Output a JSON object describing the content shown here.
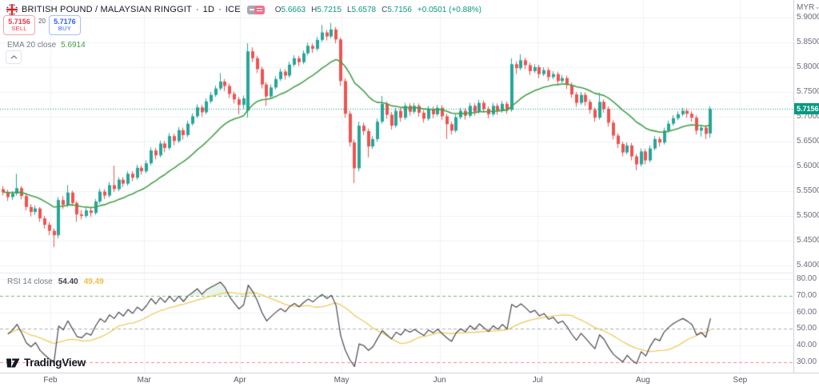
{
  "header": {
    "symbol": "BRITISH POUND / MALAYSIAN RINGGIT",
    "separator": "·",
    "interval": "1D",
    "exchange": "ICE",
    "ohlc": {
      "o_label": "O",
      "o": "5.6663",
      "h_label": "H",
      "h": "5.7215",
      "l_label": "L",
      "l": "5.6578",
      "c_label": "C",
      "c": "5.7156",
      "change": "+0.0501 (+0.88%)"
    }
  },
  "trade_buttons": {
    "sell_price": "5.7156",
    "sell_label": "SELL",
    "spread": "20",
    "buy_price": "5.7176",
    "buy_label": "BUY"
  },
  "indicators": {
    "ema": {
      "label": "EMA 20 close",
      "value": "5.6914"
    },
    "rsi": {
      "label": "RSI 14 close",
      "value": "54.40",
      "ma_value": "49.49"
    }
  },
  "price_axis": {
    "currency": "MYR",
    "ticks": [
      "5.9000",
      "5.8500",
      "5.8000",
      "5.7500",
      "5.7000",
      "5.6500",
      "5.6000",
      "5.5500",
      "5.5000",
      "5.4500",
      "5.4000"
    ],
    "current_price": "5.7156"
  },
  "rsi_axis": {
    "ticks": [
      "80.00",
      "70.00",
      "60.00",
      "50.00",
      "40.00",
      "30.00"
    ]
  },
  "time_axis": {
    "months": [
      {
        "label": "Feb",
        "anchor_index": 10.2
      },
      {
        "label": "Mar",
        "anchor_index": 30.5
      },
      {
        "label": "Apr",
        "anchor_index": 51.2
      },
      {
        "label": "May",
        "anchor_index": 73.2
      },
      {
        "label": "Jun",
        "anchor_index": 94.4
      },
      {
        "label": "Jul",
        "anchor_index": 115.6
      },
      {
        "label": "Aug",
        "anchor_index": 138.4
      },
      {
        "label": "Sep",
        "anchor_index": 159.4
      }
    ]
  },
  "logo": {
    "text": "TradingView"
  },
  "colors": {
    "up_candle": "#26a69a",
    "down_candle": "#ef5350",
    "ema_line": "#43a047",
    "rsi_line": "#4a4550",
    "rsi_ma_line": "#eec95c",
    "overbought_line": "#6dbd70",
    "midline_line": "#a9acb5",
    "oversold_line": "#f5898e",
    "current_price": "#089981",
    "grid": "#eef0f5",
    "separator": "#e4e7ed"
  },
  "chart_data": {
    "type": "candlestick",
    "title": "British Pound / Malaysian Ringgit, 1D, ICE with EMA 20 and RSI 14",
    "price_range": [
      5.4,
      5.9
    ],
    "price_tick_step": 0.05,
    "ema_period": 20,
    "rsi_period": 14,
    "rsi_ma_period": 14,
    "rsi_levels": {
      "overbought": 70,
      "middle": 50,
      "oversold": 30
    },
    "current_price": 5.7156,
    "candles": [
      [
        5.554,
        5.56,
        5.541,
        5.548
      ],
      [
        5.548,
        5.553,
        5.53,
        5.538
      ],
      [
        5.538,
        5.55,
        5.532,
        5.545
      ],
      [
        5.545,
        5.585,
        5.541,
        5.556
      ],
      [
        5.556,
        5.56,
        5.533,
        5.54
      ],
      [
        5.54,
        5.545,
        5.511,
        5.518
      ],
      [
        5.518,
        5.524,
        5.499,
        5.508
      ],
      [
        5.508,
        5.521,
        5.502,
        5.515
      ],
      [
        5.515,
        5.518,
        5.488,
        5.495
      ],
      [
        5.495,
        5.5,
        5.474,
        5.482
      ],
      [
        5.482,
        5.488,
        5.461,
        5.47
      ],
      [
        5.47,
        5.475,
        5.437,
        5.461
      ],
      [
        5.461,
        5.538,
        5.455,
        5.532
      ],
      [
        5.532,
        5.54,
        5.514,
        5.522
      ],
      [
        5.522,
        5.562,
        5.518,
        5.547
      ],
      [
        5.547,
        5.551,
        5.52,
        5.526
      ],
      [
        5.526,
        5.53,
        5.488,
        5.503
      ],
      [
        5.503,
        5.512,
        5.493,
        5.5
      ],
      [
        5.5,
        5.517,
        5.496,
        5.511
      ],
      [
        5.511,
        5.516,
        5.498,
        5.506
      ],
      [
        5.506,
        5.534,
        5.502,
        5.529
      ],
      [
        5.529,
        5.555,
        5.525,
        5.549
      ],
      [
        5.549,
        5.554,
        5.534,
        5.541
      ],
      [
        5.541,
        5.568,
        5.537,
        5.562
      ],
      [
        5.562,
        5.601,
        5.548,
        5.554
      ],
      [
        5.554,
        5.578,
        5.55,
        5.573
      ],
      [
        5.573,
        5.578,
        5.558,
        5.565
      ],
      [
        5.565,
        5.59,
        5.561,
        5.585
      ],
      [
        5.585,
        5.59,
        5.57,
        5.577
      ],
      [
        5.577,
        5.603,
        5.573,
        5.597
      ],
      [
        5.597,
        5.602,
        5.583,
        5.59
      ],
      [
        5.59,
        5.612,
        5.586,
        5.606
      ],
      [
        5.606,
        5.638,
        5.602,
        5.632
      ],
      [
        5.632,
        5.637,
        5.614,
        5.622
      ],
      [
        5.622,
        5.652,
        5.618,
        5.646
      ],
      [
        5.646,
        5.651,
        5.628,
        5.637
      ],
      [
        5.637,
        5.667,
        5.633,
        5.661
      ],
      [
        5.661,
        5.666,
        5.642,
        5.651
      ],
      [
        5.651,
        5.679,
        5.647,
        5.673
      ],
      [
        5.673,
        5.678,
        5.654,
        5.663
      ],
      [
        5.663,
        5.692,
        5.659,
        5.686
      ],
      [
        5.686,
        5.707,
        5.682,
        5.701
      ],
      [
        5.701,
        5.725,
        5.697,
        5.719
      ],
      [
        5.719,
        5.724,
        5.7,
        5.709
      ],
      [
        5.709,
        5.737,
        5.705,
        5.731
      ],
      [
        5.731,
        5.75,
        5.727,
        5.744
      ],
      [
        5.744,
        5.763,
        5.74,
        5.757
      ],
      [
        5.757,
        5.788,
        5.753,
        5.771
      ],
      [
        5.771,
        5.776,
        5.752,
        5.762
      ],
      [
        5.762,
        5.767,
        5.738,
        5.746
      ],
      [
        5.746,
        5.751,
        5.727,
        5.735
      ],
      [
        5.735,
        5.74,
        5.705,
        5.724
      ],
      [
        5.724,
        5.743,
        5.716,
        5.737
      ],
      [
        5.712,
        5.848,
        5.698,
        5.832
      ],
      [
        5.832,
        5.84,
        5.81,
        5.818
      ],
      [
        5.818,
        5.823,
        5.788,
        5.796
      ],
      [
        5.796,
        5.801,
        5.757,
        5.765
      ],
      [
        5.765,
        5.77,
        5.722,
        5.741
      ],
      [
        5.741,
        5.765,
        5.737,
        5.759
      ],
      [
        5.759,
        5.782,
        5.755,
        5.776
      ],
      [
        5.776,
        5.797,
        5.772,
        5.791
      ],
      [
        5.791,
        5.796,
        5.775,
        5.783
      ],
      [
        5.783,
        5.811,
        5.779,
        5.805
      ],
      [
        5.805,
        5.824,
        5.801,
        5.818
      ],
      [
        5.818,
        5.823,
        5.802,
        5.81
      ],
      [
        5.81,
        5.834,
        5.806,
        5.828
      ],
      [
        5.828,
        5.849,
        5.824,
        5.843
      ],
      [
        5.843,
        5.848,
        5.829,
        5.837
      ],
      [
        5.837,
        5.861,
        5.833,
        5.855
      ],
      [
        5.855,
        5.885,
        5.851,
        5.87
      ],
      [
        5.87,
        5.875,
        5.854,
        5.862
      ],
      [
        5.862,
        5.889,
        5.858,
        5.876
      ],
      [
        5.876,
        5.881,
        5.848,
        5.856
      ],
      [
        5.856,
        5.86,
        5.762,
        5.772
      ],
      [
        5.772,
        5.778,
        5.698,
        5.706
      ],
      [
        5.706,
        5.712,
        5.64,
        5.648
      ],
      [
        5.648,
        5.654,
        5.566,
        5.596
      ],
      [
        5.596,
        5.69,
        5.59,
        5.682
      ],
      [
        5.682,
        5.688,
        5.663,
        5.671
      ],
      [
        5.671,
        5.676,
        5.618,
        5.64
      ],
      [
        5.64,
        5.661,
        5.635,
        5.655
      ],
      [
        5.655,
        5.696,
        5.65,
        5.69
      ],
      [
        5.69,
        5.742,
        5.686,
        5.726
      ],
      [
        5.726,
        5.731,
        5.696,
        5.704
      ],
      [
        5.704,
        5.71,
        5.674,
        5.682
      ],
      [
        5.682,
        5.718,
        5.678,
        5.712
      ],
      [
        5.712,
        5.717,
        5.69,
        5.698
      ],
      [
        5.698,
        5.728,
        5.694,
        5.722
      ],
      [
        5.722,
        5.727,
        5.702,
        5.71
      ],
      [
        5.71,
        5.728,
        5.706,
        5.722
      ],
      [
        5.722,
        5.727,
        5.7,
        5.708
      ],
      [
        5.708,
        5.713,
        5.688,
        5.696
      ],
      [
        5.696,
        5.722,
        5.692,
        5.716
      ],
      [
        5.716,
        5.721,
        5.697,
        5.705
      ],
      [
        5.705,
        5.724,
        5.701,
        5.718
      ],
      [
        5.718,
        5.723,
        5.693,
        5.701
      ],
      [
        5.701,
        5.706,
        5.655,
        5.685
      ],
      [
        5.685,
        5.69,
        5.664,
        5.672
      ],
      [
        5.672,
        5.705,
        5.668,
        5.699
      ],
      [
        5.699,
        5.718,
        5.695,
        5.712
      ],
      [
        5.712,
        5.717,
        5.694,
        5.702
      ],
      [
        5.702,
        5.728,
        5.698,
        5.722
      ],
      [
        5.722,
        5.727,
        5.702,
        5.71
      ],
      [
        5.71,
        5.734,
        5.706,
        5.728
      ],
      [
        5.728,
        5.733,
        5.708,
        5.716
      ],
      [
        5.716,
        5.721,
        5.697,
        5.705
      ],
      [
        5.705,
        5.728,
        5.701,
        5.722
      ],
      [
        5.722,
        5.727,
        5.704,
        5.712
      ],
      [
        5.712,
        5.732,
        5.708,
        5.726
      ],
      [
        5.726,
        5.731,
        5.706,
        5.714
      ],
      [
        5.714,
        5.818,
        5.71,
        5.806
      ],
      [
        5.806,
        5.812,
        5.786,
        5.798
      ],
      [
        5.798,
        5.826,
        5.794,
        5.814
      ],
      [
        5.814,
        5.819,
        5.796,
        5.804
      ],
      [
        5.804,
        5.809,
        5.784,
        5.792
      ],
      [
        5.792,
        5.806,
        5.788,
        5.8
      ],
      [
        5.8,
        5.805,
        5.778,
        5.786
      ],
      [
        5.786,
        5.8,
        5.782,
        5.794
      ],
      [
        5.794,
        5.799,
        5.772,
        5.78
      ],
      [
        5.78,
        5.792,
        5.776,
        5.786
      ],
      [
        5.786,
        5.791,
        5.764,
        5.772
      ],
      [
        5.772,
        5.784,
        5.768,
        5.778
      ],
      [
        5.778,
        5.783,
        5.756,
        5.764
      ],
      [
        5.764,
        5.769,
        5.738,
        5.745
      ],
      [
        5.745,
        5.75,
        5.72,
        5.728
      ],
      [
        5.728,
        5.75,
        5.724,
        5.744
      ],
      [
        5.744,
        5.749,
        5.722,
        5.73
      ],
      [
        5.73,
        5.735,
        5.706,
        5.714
      ],
      [
        5.714,
        5.719,
        5.69,
        5.698
      ],
      [
        5.698,
        5.748,
        5.694,
        5.73
      ],
      [
        5.73,
        5.735,
        5.708,
        5.716
      ],
      [
        5.716,
        5.721,
        5.68,
        5.688
      ],
      [
        5.688,
        5.693,
        5.654,
        5.662
      ],
      [
        5.662,
        5.667,
        5.637,
        5.645
      ],
      [
        5.645,
        5.65,
        5.62,
        5.628
      ],
      [
        5.628,
        5.648,
        5.624,
        5.642
      ],
      [
        5.642,
        5.647,
        5.612,
        5.62
      ],
      [
        5.62,
        5.625,
        5.592,
        5.604
      ],
      [
        5.604,
        5.636,
        5.6,
        5.63
      ],
      [
        5.63,
        5.635,
        5.604,
        5.612
      ],
      [
        5.612,
        5.642,
        5.608,
        5.636
      ],
      [
        5.636,
        5.661,
        5.632,
        5.655
      ],
      [
        5.655,
        5.66,
        5.64,
        5.648
      ],
      [
        5.648,
        5.678,
        5.644,
        5.672
      ],
      [
        5.672,
        5.692,
        5.668,
        5.686
      ],
      [
        5.686,
        5.703,
        5.682,
        5.697
      ],
      [
        5.697,
        5.711,
        5.693,
        5.705
      ],
      [
        5.705,
        5.718,
        5.701,
        5.712
      ],
      [
        5.712,
        5.717,
        5.698,
        5.706
      ],
      [
        5.706,
        5.711,
        5.69,
        5.698
      ],
      [
        5.698,
        5.703,
        5.664,
        5.672
      ],
      [
        5.672,
        5.684,
        5.66,
        5.678
      ],
      [
        5.678,
        5.683,
        5.655,
        5.6655
      ],
      [
        5.6663,
        5.7215,
        5.6578,
        5.7156
      ]
    ]
  }
}
